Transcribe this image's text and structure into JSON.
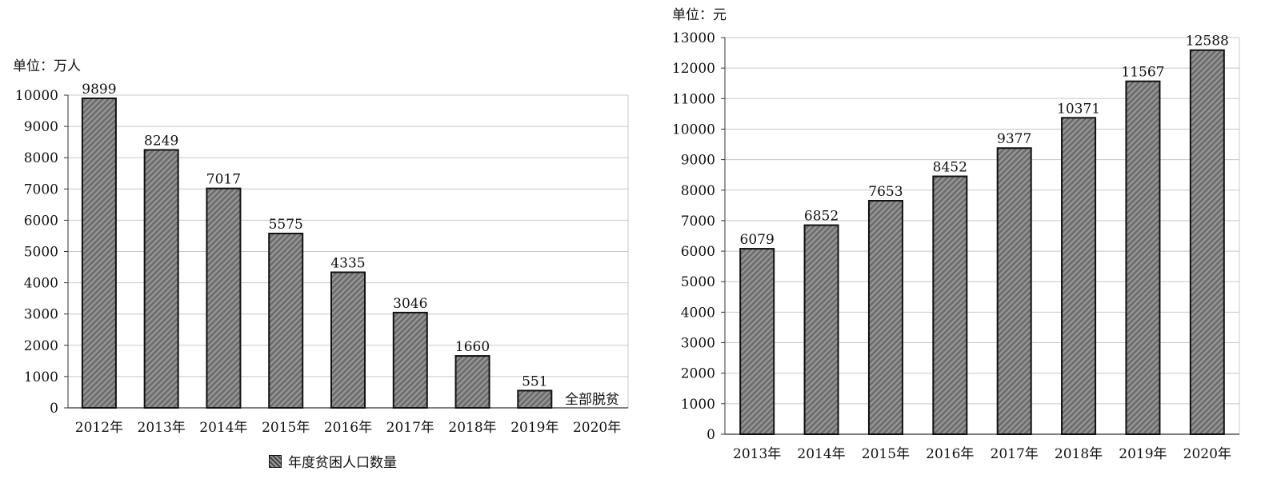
{
  "chart_data": [
    {
      "type": "bar",
      "unit_label": "单位：万人",
      "categories": [
        "2012年",
        "2013年",
        "2014年",
        "2015年",
        "2016年",
        "2017年",
        "2018年",
        "2019年",
        "2020年"
      ],
      "series": [
        {
          "name": "年度贫困人口数量",
          "values": [
            9899,
            8249,
            7017,
            5575,
            4335,
            3046,
            1660,
            551,
            null
          ]
        }
      ],
      "data_labels": [
        "9899",
        "8249",
        "7017",
        "5575",
        "4335",
        "3046",
        "1660",
        "551",
        ""
      ],
      "annotation": "全部脱贫",
      "yticks": [
        "0",
        "1000",
        "2000",
        "3000",
        "4000",
        "5000",
        "6000",
        "7000",
        "8000",
        "9000",
        "10000"
      ],
      "ylim": [
        0,
        10000
      ],
      "grid": true,
      "legend": {
        "position": "bottom",
        "label": "年度贫困人口数量"
      },
      "colors": {
        "bar_fill": "#6e6e6e",
        "bar_hatch": "#9a9a9a",
        "bar_stroke": "#111111",
        "grid": "#c8c8c8"
      }
    },
    {
      "type": "bar",
      "unit_label": "单位：元",
      "categories": [
        "2013年",
        "2014年",
        "2015年",
        "2016年",
        "2017年",
        "2018年",
        "2019年",
        "2020年"
      ],
      "series": [
        {
          "values": [
            6079,
            6852,
            7653,
            8452,
            9377,
            10371,
            11567,
            12588
          ]
        }
      ],
      "data_labels": [
        "6079",
        "6852",
        "7653",
        "8452",
        "9377",
        "10371",
        "11567",
        "12588"
      ],
      "yticks": [
        "0",
        "1000",
        "2000",
        "3000",
        "4000",
        "5000",
        "6000",
        "7000",
        "8000",
        "9000",
        "10000",
        "11000",
        "12000",
        "13000"
      ],
      "ylim": [
        0,
        13000
      ],
      "grid": true,
      "colors": {
        "bar_fill": "#6e6e6e",
        "bar_hatch": "#9a9a9a",
        "bar_stroke": "#111111",
        "grid": "#c8c8c8"
      }
    }
  ]
}
